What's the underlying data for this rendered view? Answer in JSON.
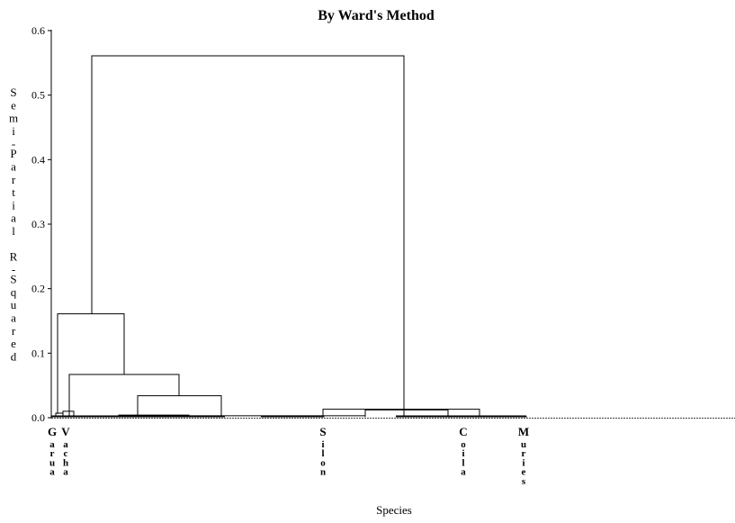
{
  "chart_data": {
    "type": "dendrogram",
    "title": "By Ward's Method",
    "xlabel": "Species",
    "ylabel": "Semi-Partial R-Squared",
    "ylim": [
      0,
      0.6
    ],
    "yticks": [
      "0.0",
      "0.1",
      "0.2",
      "0.3",
      "0.4",
      "0.5",
      "0.6"
    ],
    "leaf_labels": [
      "Garua",
      "Vacha",
      "Silon",
      "Coila",
      "Muries"
    ],
    "merge_heights": [
      0.561,
      0.161,
      0.067,
      0.034,
      0.013,
      0.012,
      0.01,
      0.007,
      0.004,
      0.003,
      0.003,
      0.002
    ]
  }
}
